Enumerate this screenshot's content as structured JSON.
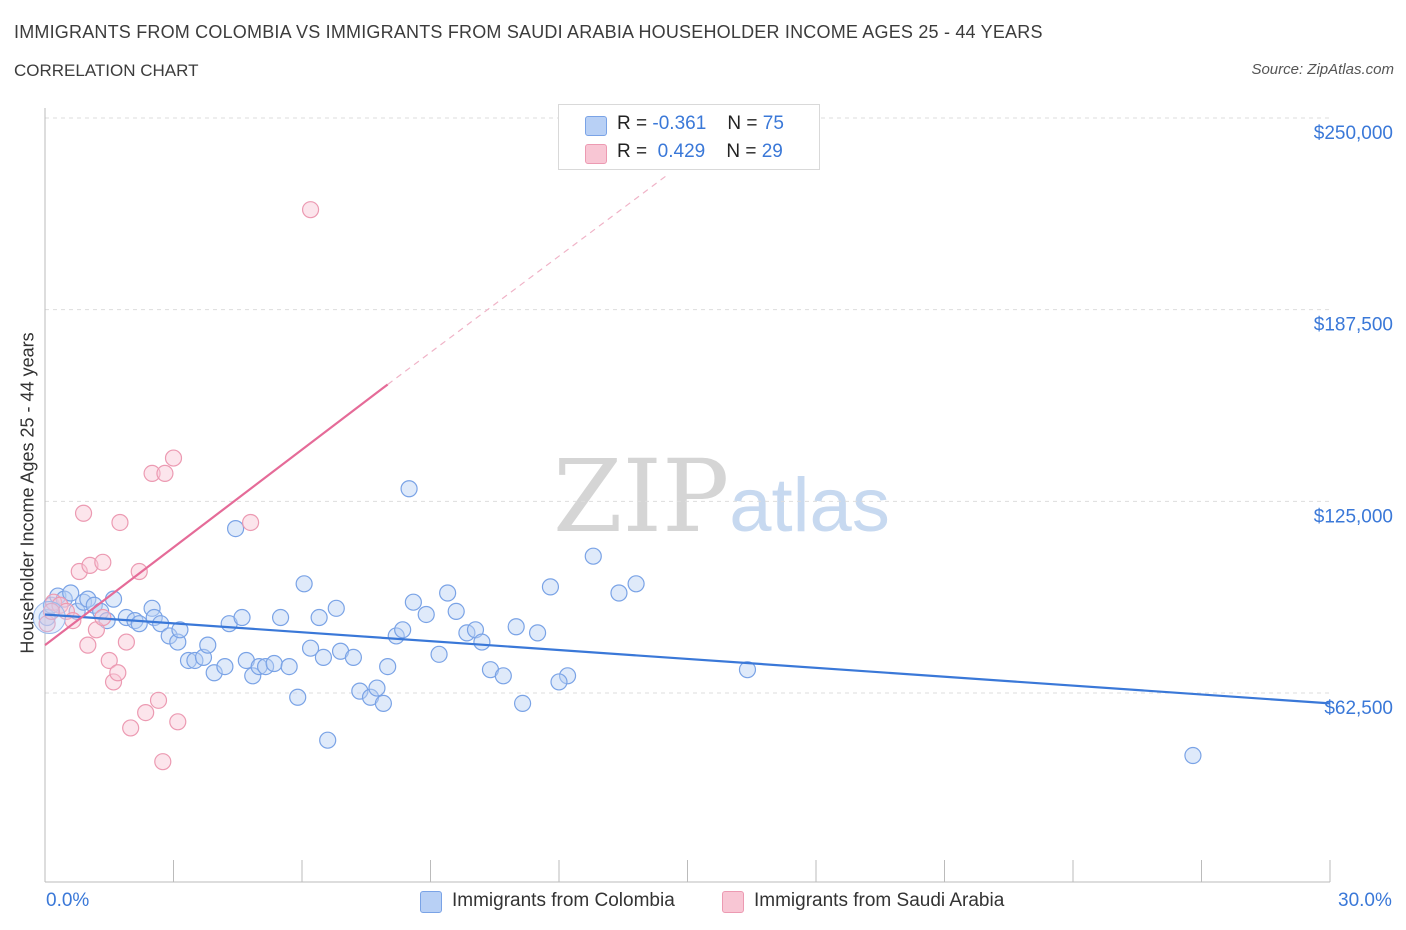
{
  "header": {
    "title": "IMMIGRANTS FROM COLOMBIA VS IMMIGRANTS FROM SAUDI ARABIA HOUSEHOLDER INCOME AGES 25 - 44 YEARS",
    "subtitle": "CORRELATION CHART",
    "source": "Source: ZipAtlas.com"
  },
  "watermark": {
    "part1": "ZIP",
    "part2": "atlas"
  },
  "legend": {
    "r_label": "R =",
    "n_label": "N =",
    "rows": [
      {
        "r": "-0.361",
        "n": "75",
        "swatch_fill": "#b8d0f5",
        "swatch_stroke": "#7aa3e6"
      },
      {
        "r": "0.429",
        "n": "29",
        "swatch_fill": "#f8c6d4",
        "swatch_stroke": "#ec9ab2"
      }
    ]
  },
  "chart_data": {
    "type": "scatter",
    "title": "IMMIGRANTS FROM COLOMBIA VS IMMIGRANTS FROM SAUDI ARABIA HOUSEHOLDER INCOME AGES 25 - 44 YEARS",
    "xlabel": "",
    "ylabel": "Householder Income Ages 25 - 44 years",
    "xlim": [
      0,
      30
    ],
    "ylim": [
      0,
      250000
    ],
    "x_tick_labels": [
      "0.0%",
      "30.0%"
    ],
    "y_ticks": [
      {
        "value": 250000,
        "label": "$250,000"
      },
      {
        "value": 187500,
        "label": "$187,500"
      },
      {
        "value": 125000,
        "label": "$125,000"
      },
      {
        "value": 62500,
        "label": "$62,500"
      }
    ],
    "grid": true,
    "legend_position": "bottom",
    "colors": {
      "colombia": "#3a78d8",
      "saudi": "#e56b98",
      "tick_label": "#3a78d8"
    },
    "series": [
      {
        "name": "Immigrants from Colombia",
        "r": -0.361,
        "n": 75,
        "trend": {
          "x0": 0.0,
          "y0": 93000,
          "x1": 30.0,
          "y1": 64000,
          "dashed_to": null
        },
        "points": [
          [
            0.05,
            92000
          ],
          [
            0.15,
            96000
          ],
          [
            0.3,
            99000
          ],
          [
            0.45,
            98000
          ],
          [
            0.6,
            100000
          ],
          [
            0.75,
            94000
          ],
          [
            0.9,
            97000
          ],
          [
            1.0,
            98000
          ],
          [
            1.15,
            96000
          ],
          [
            1.3,
            94000
          ],
          [
            1.45,
            91000
          ],
          [
            1.6,
            98000
          ],
          [
            1.9,
            92000
          ],
          [
            2.1,
            91000
          ],
          [
            2.2,
            90000
          ],
          [
            2.5,
            95000
          ],
          [
            2.55,
            92000
          ],
          [
            2.7,
            90000
          ],
          [
            2.9,
            86000
          ],
          [
            3.1,
            84000
          ],
          [
            3.15,
            88000
          ],
          [
            3.35,
            78000
          ],
          [
            3.5,
            78000
          ],
          [
            3.7,
            79000
          ],
          [
            3.8,
            83000
          ],
          [
            3.95,
            74000
          ],
          [
            4.2,
            76000
          ],
          [
            4.3,
            90000
          ],
          [
            4.45,
            121000
          ],
          [
            4.6,
            92000
          ],
          [
            4.7,
            78000
          ],
          [
            4.85,
            73000
          ],
          [
            5.0,
            76000
          ],
          [
            5.15,
            76000
          ],
          [
            5.35,
            77000
          ],
          [
            5.5,
            92000
          ],
          [
            5.7,
            76000
          ],
          [
            5.9,
            66000
          ],
          [
            6.05,
            103000
          ],
          [
            6.2,
            82000
          ],
          [
            6.4,
            92000
          ],
          [
            6.5,
            79000
          ],
          [
            6.6,
            52000
          ],
          [
            6.8,
            95000
          ],
          [
            6.9,
            81000
          ],
          [
            7.2,
            79000
          ],
          [
            7.35,
            68000
          ],
          [
            7.6,
            66000
          ],
          [
            7.75,
            69000
          ],
          [
            7.9,
            64000
          ],
          [
            8.0,
            76000
          ],
          [
            8.2,
            86000
          ],
          [
            8.35,
            88000
          ],
          [
            8.5,
            134000
          ],
          [
            8.6,
            97000
          ],
          [
            8.9,
            93000
          ],
          [
            9.2,
            80000
          ],
          [
            9.4,
            100000
          ],
          [
            9.6,
            94000
          ],
          [
            9.85,
            87000
          ],
          [
            10.05,
            88000
          ],
          [
            10.2,
            84000
          ],
          [
            10.4,
            75000
          ],
          [
            10.7,
            73000
          ],
          [
            11.0,
            89000
          ],
          [
            11.15,
            64000
          ],
          [
            11.5,
            87000
          ],
          [
            11.8,
            102000
          ],
          [
            12.2,
            73000
          ],
          [
            12.0,
            71000
          ],
          [
            12.8,
            112000
          ],
          [
            13.4,
            100000
          ],
          [
            13.8,
            103000
          ],
          [
            16.4,
            75000
          ],
          [
            26.8,
            47000
          ]
        ]
      },
      {
        "name": "Immigrants from Saudi Arabia",
        "r": 0.429,
        "n": 29,
        "trend": {
          "x0": 0.0,
          "y0": 83000,
          "x1": 8.0,
          "y1": 168000,
          "dashed_to": {
            "x": 14.5,
            "y": 236000
          }
        },
        "points": [
          [
            0.05,
            90000
          ],
          [
            0.2,
            97000
          ],
          [
            0.35,
            96000
          ],
          [
            0.5,
            94000
          ],
          [
            0.65,
            91000
          ],
          [
            0.8,
            107000
          ],
          [
            0.9,
            126000
          ],
          [
            1.0,
            83000
          ],
          [
            1.05,
            109000
          ],
          [
            1.2,
            88000
          ],
          [
            1.35,
            110000
          ],
          [
            1.5,
            78000
          ],
          [
            1.6,
            71000
          ],
          [
            1.7,
            74000
          ],
          [
            1.75,
            123000
          ],
          [
            1.9,
            84000
          ],
          [
            2.0,
            56000
          ],
          [
            2.2,
            107000
          ],
          [
            2.35,
            61000
          ],
          [
            2.5,
            139000
          ],
          [
            2.65,
            65000
          ],
          [
            2.75,
            45000
          ],
          [
            2.8,
            139000
          ],
          [
            3.0,
            144000
          ],
          [
            3.1,
            58000
          ],
          [
            4.8,
            123000
          ],
          [
            6.2,
            225000
          ],
          [
            0.15,
            94000
          ],
          [
            1.35,
            92000
          ]
        ]
      }
    ]
  },
  "bottom_legend": {
    "items": [
      {
        "label": "Immigrants from Colombia"
      },
      {
        "label": "Immigrants from Saudi Arabia"
      }
    ]
  }
}
